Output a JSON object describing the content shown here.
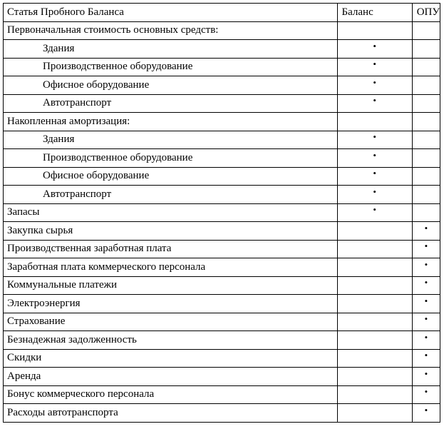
{
  "header": {
    "item": "Статья Пробного Баланса",
    "balance": "Баланс",
    "pnl": "ОПУ"
  },
  "mark_symbol": "•",
  "rows": [
    {
      "label": "Первоначальная стоимость основных средств:",
      "indent": false,
      "balance": "",
      "pnl": ""
    },
    {
      "label": "Здания",
      "indent": true,
      "balance": "•",
      "pnl": ""
    },
    {
      "label": "Производственное оборудование",
      "indent": true,
      "balance": "•",
      "pnl": ""
    },
    {
      "label": "Офисное оборудование",
      "indent": true,
      "balance": "•",
      "pnl": ""
    },
    {
      "label": "Автотранспорт",
      "indent": true,
      "balance": "•",
      "pnl": ""
    },
    {
      "label": "Накопленная амортизация:",
      "indent": false,
      "balance": "",
      "pnl": ""
    },
    {
      "label": "Здания",
      "indent": true,
      "balance": "•",
      "pnl": ""
    },
    {
      "label": "Производственное оборудование",
      "indent": true,
      "balance": "•",
      "pnl": ""
    },
    {
      "label": "Офисное оборудование",
      "indent": true,
      "balance": "•",
      "pnl": ""
    },
    {
      "label": "Автотранспорт",
      "indent": true,
      "balance": "•",
      "pnl": ""
    },
    {
      "label": "Запасы",
      "indent": false,
      "balance": "•",
      "pnl": ""
    },
    {
      "label": "Закупка сырья",
      "indent": false,
      "balance": "",
      "pnl": "•"
    },
    {
      "label": "Производственная заработная плата",
      "indent": false,
      "balance": "",
      "pnl": "•"
    },
    {
      "label": "Заработная плата коммерческого персонала",
      "indent": false,
      "balance": "",
      "pnl": "•"
    },
    {
      "label": "Коммунальные платежи",
      "indent": false,
      "balance": "",
      "pnl": "•"
    },
    {
      "label": "Электроэнергия",
      "indent": false,
      "balance": "",
      "pnl": "•"
    },
    {
      "label": "Страхование",
      "indent": false,
      "balance": "",
      "pnl": "•"
    },
    {
      "label": "Безнадежная задолженность",
      "indent": false,
      "balance": "",
      "pnl": "•"
    },
    {
      "label": "Скидки",
      "indent": false,
      "balance": "",
      "pnl": "•"
    },
    {
      "label": "Аренда",
      "indent": false,
      "balance": "",
      "pnl": "•"
    },
    {
      "label": "Бонус коммерческого персонала",
      "indent": false,
      "balance": "",
      "pnl": "•"
    },
    {
      "label": "Расходы автотранспорта",
      "indent": false,
      "balance": "",
      "pnl": "•"
    }
  ]
}
